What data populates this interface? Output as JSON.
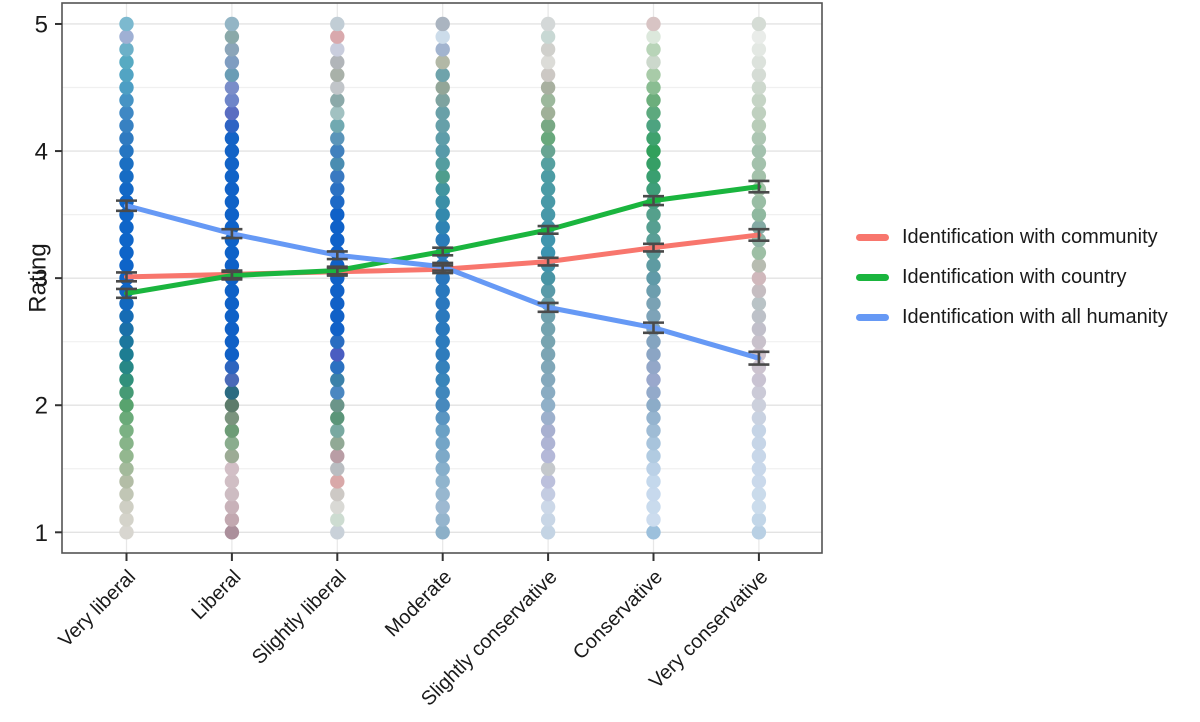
{
  "chart_data": {
    "type": "line",
    "title": "",
    "xlabel": "",
    "ylabel": "Rating",
    "categories": [
      "Very liberal",
      "Liberal",
      "Slightly liberal",
      "Moderate",
      "Slightly conservative",
      "Conservative",
      "Very conservative"
    ],
    "yticks": [
      "1",
      "2",
      "3",
      "4",
      "5"
    ],
    "ylim": [
      1,
      5
    ],
    "grid": {
      "major": "#e3e3e3",
      "minor": "#f0f0f0",
      "vertical": "#e7e7e7"
    },
    "legend_position": "right",
    "errorbar_color": "#4a4a4a",
    "axis_text_color": "#1a1a1a",
    "panel_border_color": "#545454",
    "series": [
      {
        "name": "Identification with community",
        "color": "#F8766D",
        "values": [
          3.01,
          3.03,
          3.05,
          3.07,
          3.13,
          3.24,
          3.34
        ],
        "se": [
          0.035,
          0.03,
          0.03,
          0.03,
          0.03,
          0.03,
          0.045
        ]
      },
      {
        "name": "Identification with country",
        "color": "#1AB53E",
        "values": [
          2.88,
          3.02,
          3.06,
          3.21,
          3.38,
          3.61,
          3.72
        ],
        "se": [
          0.035,
          0.03,
          0.03,
          0.03,
          0.03,
          0.035,
          0.045
        ]
      },
      {
        "name": "Identification with all humanity",
        "color": "#6699F5",
        "values": [
          3.57,
          3.35,
          3.18,
          3.09,
          2.77,
          2.61,
          2.37
        ],
        "se": [
          0.04,
          0.035,
          0.03,
          0.03,
          0.035,
          0.04,
          0.05
        ]
      }
    ],
    "points": {
      "step": 0.1,
      "radius": 7.2,
      "min": 1,
      "max": 5,
      "columns": [
        {
          "category": "Very liberal",
          "stops": [
            [
              1.0,
              "#d8d6d0"
            ],
            [
              1.2,
              "#cfcfc4"
            ],
            [
              1.4,
              "#b3bda6"
            ],
            [
              1.6,
              "#93b78f"
            ],
            [
              1.8,
              "#7bb183"
            ],
            [
              2.0,
              "#58a36e"
            ],
            [
              2.2,
              "#31907b"
            ],
            [
              2.4,
              "#1d7d92"
            ],
            [
              2.6,
              "#1a70a8"
            ],
            [
              2.8,
              "#1268bf"
            ],
            [
              3.0,
              "#0e64c8"
            ],
            [
              3.6,
              "#0f65c8"
            ],
            [
              3.9,
              "#1b6fc2"
            ],
            [
              4.1,
              "#2f7ac0"
            ],
            [
              4.3,
              "#3f88c4"
            ],
            [
              4.5,
              "#4d9ec4"
            ],
            [
              4.7,
              "#57aac2"
            ],
            [
              4.8,
              "#6cb0c8"
            ],
            [
              4.9,
              "#9fb0d4"
            ],
            [
              5.0,
              "#7cb9cf"
            ]
          ]
        },
        {
          "category": "Liberal",
          "stops": [
            [
              1.0,
              "#ab8f9b"
            ],
            [
              1.1,
              "#c2a8b0"
            ],
            [
              1.3,
              "#cdbcc2"
            ],
            [
              1.5,
              "#d2bfc6"
            ],
            [
              1.6,
              "#9cab95"
            ],
            [
              1.7,
              "#8aad8e"
            ],
            [
              1.8,
              "#6d9c76"
            ],
            [
              1.9,
              "#7b947e"
            ],
            [
              2.0,
              "#5d7c6b"
            ],
            [
              2.1,
              "#2b6b81"
            ],
            [
              2.2,
              "#4a6ab8"
            ],
            [
              2.4,
              "#1060c6"
            ],
            [
              3.4,
              "#0e62c8"
            ],
            [
              4.1,
              "#1463c6"
            ],
            [
              4.2,
              "#2e63c4"
            ],
            [
              4.3,
              "#5a6dc1"
            ],
            [
              4.4,
              "#6e85c9"
            ],
            [
              4.5,
              "#7a8dc9"
            ],
            [
              4.6,
              "#6a9db5"
            ],
            [
              4.7,
              "#7f9dc1"
            ],
            [
              4.8,
              "#8ba5b9"
            ],
            [
              4.9,
              "#8aa9a9"
            ],
            [
              5.0,
              "#93b5c5"
            ]
          ]
        },
        {
          "category": "Slightly liberal",
          "stops": [
            [
              1.0,
              "#c9d1d9"
            ],
            [
              1.1,
              "#cddcd1"
            ],
            [
              1.2,
              "#d9d9d5"
            ],
            [
              1.3,
              "#cdc9c5"
            ],
            [
              1.4,
              "#d9a9a9"
            ],
            [
              1.5,
              "#b9bdc1"
            ],
            [
              1.6,
              "#b99da5"
            ],
            [
              1.7,
              "#91a995"
            ],
            [
              1.8,
              "#79a9a1"
            ],
            [
              1.9,
              "#5b9579"
            ],
            [
              2.0,
              "#6b9589"
            ],
            [
              2.1,
              "#4b87c1"
            ],
            [
              2.2,
              "#3b81a9"
            ],
            [
              2.3,
              "#2b71c1"
            ],
            [
              2.4,
              "#4a5dc1"
            ],
            [
              2.5,
              "#2a6dc1"
            ],
            [
              2.6,
              "#1161c7"
            ],
            [
              3.5,
              "#0f61c8"
            ],
            [
              3.8,
              "#3979c1"
            ],
            [
              3.9,
              "#4a8db1"
            ],
            [
              4.0,
              "#4181bd"
            ],
            [
              4.1,
              "#5b95b9"
            ],
            [
              4.2,
              "#71a9b1"
            ],
            [
              4.3,
              "#a1c1c1"
            ],
            [
              4.4,
              "#8ba9a9"
            ],
            [
              4.5,
              "#c1c5c9"
            ],
            [
              4.6,
              "#a9b1a9"
            ],
            [
              4.7,
              "#b1b5b9"
            ],
            [
              4.8,
              "#c9cddd"
            ],
            [
              4.9,
              "#d9a9ad"
            ],
            [
              5.0,
              "#c1cdd5"
            ]
          ]
        },
        {
          "category": "Moderate",
          "stops": [
            [
              1.0,
              "#8cb0c8"
            ],
            [
              1.2,
              "#9db9d1"
            ],
            [
              1.4,
              "#90b4cd"
            ],
            [
              1.6,
              "#7da9c8"
            ],
            [
              1.8,
              "#6ba1c5"
            ],
            [
              2.0,
              "#4889bd"
            ],
            [
              2.2,
              "#3a85ba"
            ],
            [
              2.4,
              "#2f7cbc"
            ],
            [
              2.6,
              "#2b79bd"
            ],
            [
              3.0,
              "#2a77be"
            ],
            [
              3.3,
              "#2b7cba"
            ],
            [
              3.5,
              "#3389ad"
            ],
            [
              3.7,
              "#4295a0"
            ],
            [
              3.8,
              "#4f9d8d"
            ],
            [
              3.9,
              "#549da0"
            ],
            [
              4.0,
              "#579aa9"
            ],
            [
              4.2,
              "#66a0a9"
            ],
            [
              4.3,
              "#69a0a8"
            ],
            [
              4.5,
              "#93a698"
            ],
            [
              4.6,
              "#6fa3ab"
            ],
            [
              4.7,
              "#b2b8a6"
            ],
            [
              4.8,
              "#a2b4cf"
            ],
            [
              4.9,
              "#ccdcea"
            ],
            [
              5.0,
              "#aab4c0"
            ]
          ]
        },
        {
          "category": "Slightly conservative",
          "stops": [
            [
              1.0,
              "#c4d4e4"
            ],
            [
              1.2,
              "#ccd8e8"
            ],
            [
              1.4,
              "#bcc0dc"
            ],
            [
              1.5,
              "#c4c8cc"
            ],
            [
              1.6,
              "#b4b8d8"
            ],
            [
              1.8,
              "#a8b0d0"
            ],
            [
              2.0,
              "#90b0c8"
            ],
            [
              2.2,
              "#84a8bc"
            ],
            [
              2.5,
              "#78a4b0"
            ],
            [
              2.8,
              "#6ca0ac"
            ],
            [
              3.0,
              "#4894a4"
            ],
            [
              3.2,
              "#3c94b0"
            ],
            [
              3.5,
              "#4898a8"
            ],
            [
              3.8,
              "#4c9ca4"
            ],
            [
              3.9,
              "#56a0a0"
            ],
            [
              4.0,
              "#68a492"
            ],
            [
              4.1,
              "#68a87c"
            ],
            [
              4.2,
              "#78a884"
            ],
            [
              4.3,
              "#a0b098"
            ],
            [
              4.4,
              "#9cb89c"
            ],
            [
              4.5,
              "#a8b0a0"
            ],
            [
              4.6,
              "#ccc8c4"
            ],
            [
              4.7,
              "#dcdcd8"
            ],
            [
              4.8,
              "#d0d0cc"
            ],
            [
              4.9,
              "#c8d8d4"
            ],
            [
              5.0,
              "#d4d8d8"
            ]
          ]
        },
        {
          "category": "Conservative",
          "stops": [
            [
              1.0,
              "#9cc0dc"
            ],
            [
              1.1,
              "#ccdcee"
            ],
            [
              1.4,
              "#c4d8ec"
            ],
            [
              1.7,
              "#a8c4dc"
            ],
            [
              2.0,
              "#8cacc8"
            ],
            [
              2.2,
              "#9aa8cc"
            ],
            [
              2.5,
              "#84a4c0"
            ],
            [
              2.8,
              "#7aa2b4"
            ],
            [
              3.0,
              "#609aa8"
            ],
            [
              3.3,
              "#5a9e96"
            ],
            [
              3.5,
              "#55a08c"
            ],
            [
              3.7,
              "#3f9e7a"
            ],
            [
              4.0,
              "#31a05c"
            ],
            [
              4.2,
              "#4da380"
            ],
            [
              4.4,
              "#6cae7c"
            ],
            [
              4.6,
              "#a8cba8"
            ],
            [
              4.7,
              "#ccd8cc"
            ],
            [
              4.8,
              "#b8d4b8"
            ],
            [
              4.9,
              "#dce8dc"
            ],
            [
              5.0,
              "#d8c4c4"
            ]
          ]
        },
        {
          "category": "Very conservative",
          "stops": [
            [
              1.0,
              "#b9d0e4"
            ],
            [
              1.2,
              "#cbdcec"
            ],
            [
              1.5,
              "#c9d8ea"
            ],
            [
              1.8,
              "#c5d4e6"
            ],
            [
              2.0,
              "#ccd0dc"
            ],
            [
              2.2,
              "#c9c3d2"
            ],
            [
              2.4,
              "#cfc3cc"
            ],
            [
              2.6,
              "#c1bfca"
            ],
            [
              2.8,
              "#b9c3c6"
            ],
            [
              3.0,
              "#d0b8bc"
            ],
            [
              3.2,
              "#9dbfa5"
            ],
            [
              3.4,
              "#84aaa4"
            ],
            [
              3.5,
              "#8fb89f"
            ],
            [
              3.7,
              "#a3c1a8"
            ],
            [
              4.0,
              "#a3c1ae"
            ],
            [
              4.2,
              "#b8ccb8"
            ],
            [
              4.4,
              "#c5d4c5"
            ],
            [
              4.6,
              "#d5dcd5"
            ],
            [
              4.8,
              "#e3e8e3"
            ],
            [
              4.9,
              "#e9ece9"
            ],
            [
              5.0,
              "#d5dcd5"
            ]
          ]
        }
      ]
    }
  }
}
